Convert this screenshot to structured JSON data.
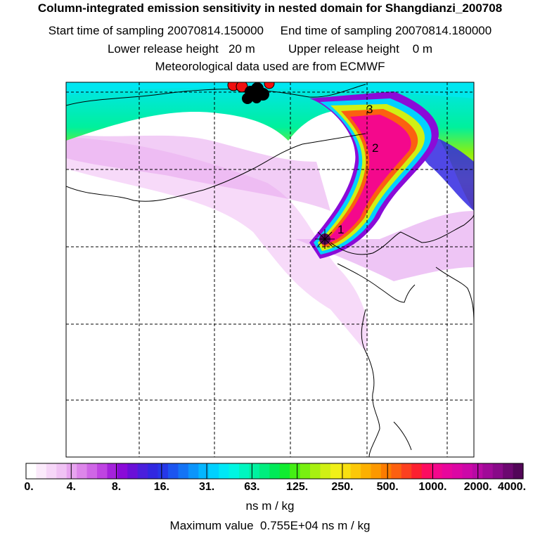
{
  "header": {
    "title": "Column-integrated emission sensitivity in nested domain for Shangdianzi_200708",
    "start_label": "Start time of sampling 20070814.150000",
    "end_label": "End time of sampling 20070814.180000",
    "lower_release": "Lower release height   20 m",
    "upper_release": "Upper release height    0 m",
    "met_data": "Meteorological data used are from ECMWF"
  },
  "map": {
    "release_label": "1",
    "day_labels": [
      "1",
      "2",
      "3"
    ]
  },
  "colorbar": {
    "ticks": [
      "0.",
      "4.",
      "8.",
      "16.",
      "31.",
      "63.",
      "125.",
      "250.",
      "500.",
      "1000.",
      "2000.",
      "4000."
    ],
    "colors": [
      "#ffffff",
      "#fbeafb",
      "#f6d6f8",
      "#f0c2f4",
      "#e7a4ef",
      "#dd86ea",
      "#cf66e6",
      "#bf44e2",
      "#a522dc",
      "#8a0bd8",
      "#6a10d8",
      "#4a1fdc",
      "#3128e0",
      "#2638e8",
      "#1c55f0",
      "#1474f5",
      "#0c95fb",
      "#04b6ff",
      "#00d1ff",
      "#00e8f6",
      "#00f6e2",
      "#00f6c0",
      "#00f2a0",
      "#00ee7e",
      "#00ea58",
      "#10ec30",
      "#44ee14",
      "#78f010",
      "#a8f010",
      "#d0f014",
      "#f0f018",
      "#f8e010",
      "#fcc808",
      "#fcb000",
      "#fc9800",
      "#fc7c00",
      "#fc6010",
      "#fc4020",
      "#fc2030",
      "#fc0c60",
      "#f4088c",
      "#e8069c",
      "#dc06a4",
      "#cc08a8",
      "#b80aa4",
      "#a00a98",
      "#880a88",
      "#6c0870",
      "#520658"
    ],
    "units": "ns m / kg"
  },
  "max_value": "Maximum value  0.755E+04 ns m / kg"
}
